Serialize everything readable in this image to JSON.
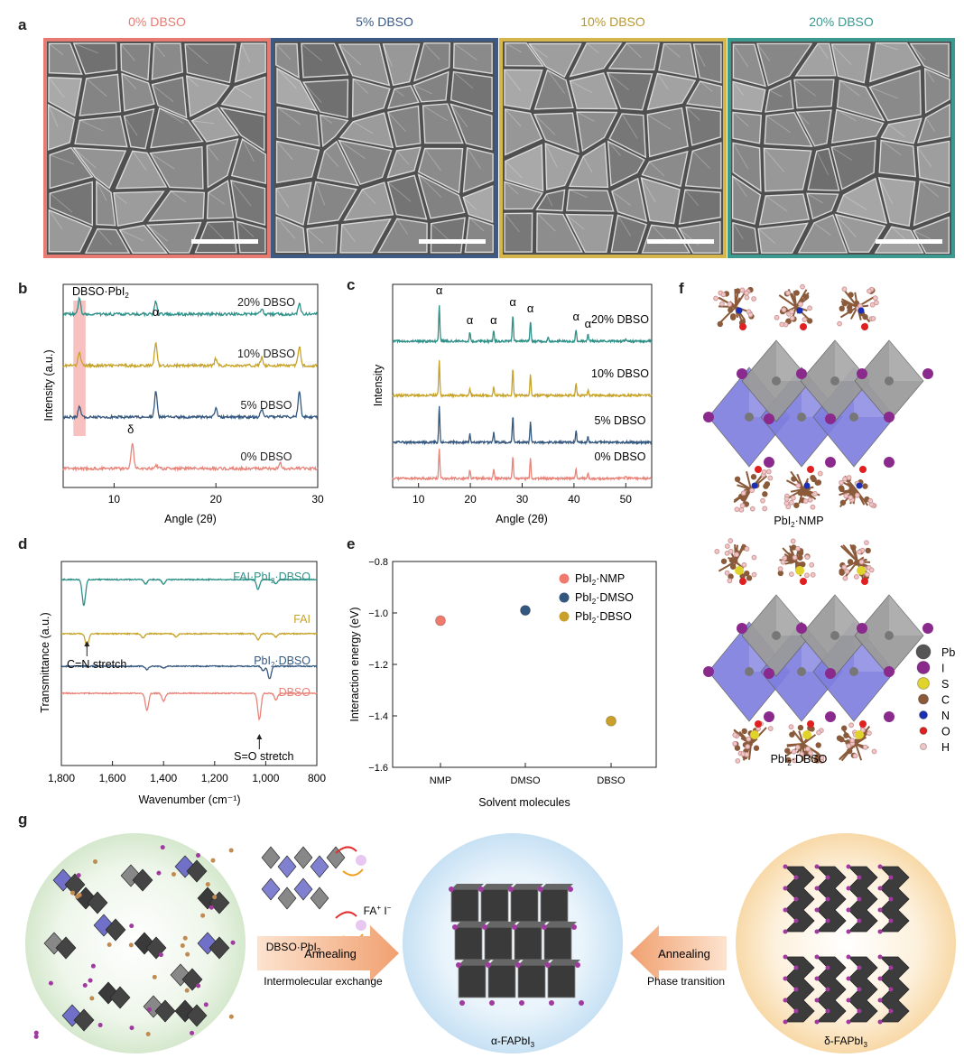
{
  "panels": {
    "a": "a",
    "b": "b",
    "c": "c",
    "d": "d",
    "e": "e",
    "f": "f",
    "g": "g"
  },
  "sem": [
    {
      "label": "0% DBSO",
      "color": "#e77b72"
    },
    {
      "label": "5% DBSO",
      "color": "#3d5a84"
    },
    {
      "label": "10% DBSO",
      "color": "#d4b64b"
    },
    {
      "label": "20% DBSO",
      "color": "#3a9a8f"
    }
  ],
  "colors": {
    "s0": "#e8847a",
    "s5": "#35587e",
    "s10": "#c6a32a",
    "s20": "#2e9088",
    "highlight": "#f4a6a4"
  },
  "chart_data": [
    {
      "type": "line",
      "id": "b",
      "xlabel": "Angle (2θ)",
      "ylabel": "Intensity (a.u.)",
      "xlim": [
        5,
        30
      ],
      "xticks": [
        10,
        20,
        30
      ],
      "highlight_label": "DBSO·PbI2",
      "highlight_range": [
        6.0,
        7.2
      ],
      "series": [
        {
          "name": "20% DBSO",
          "peaks": [
            [
              6.6,
              0.7
            ],
            [
              14.1,
              0.55
            ],
            [
              24.5,
              0.2
            ],
            [
              28.2,
              0.45
            ]
          ]
        },
        {
          "name": "10% DBSO",
          "peaks": [
            [
              6.6,
              0.6
            ],
            [
              14.1,
              1.0
            ],
            [
              20.0,
              0.3
            ],
            [
              24.5,
              0.35
            ],
            [
              28.2,
              0.85
            ]
          ]
        },
        {
          "name": "5% DBSO",
          "peaks": [
            [
              6.6,
              0.45
            ],
            [
              14.1,
              1.1
            ],
            [
              20.0,
              0.35
            ],
            [
              24.5,
              0.3
            ],
            [
              28.2,
              1.1
            ]
          ]
        },
        {
          "name": "0% DBSO",
          "peaks": [
            [
              11.8,
              1.1
            ],
            [
              14.1,
              0.15
            ],
            [
              26.3,
              0.25
            ]
          ]
        }
      ],
      "annotations": [
        {
          "text": "α",
          "x": 14.1
        },
        {
          "text": "δ",
          "x": 11.8
        }
      ]
    },
    {
      "type": "line",
      "id": "c",
      "xlabel": "Angle (2θ)",
      "ylabel": "Intensity",
      "xlim": [
        5,
        55
      ],
      "xticks": [
        10,
        20,
        30,
        40,
        50
      ],
      "series": [
        {
          "name": "20% DBSO",
          "peaks": [
            [
              14.0,
              1.3
            ],
            [
              19.9,
              0.35
            ],
            [
              24.5,
              0.4
            ],
            [
              28.2,
              0.95
            ],
            [
              31.6,
              0.75
            ],
            [
              35.0,
              0.12
            ],
            [
              40.4,
              0.45
            ],
            [
              42.7,
              0.25
            ],
            [
              50.0,
              0.1
            ]
          ]
        },
        {
          "name": "10% DBSO",
          "peaks": [
            [
              14.0,
              1.3
            ],
            [
              19.9,
              0.25
            ],
            [
              24.5,
              0.3
            ],
            [
              28.2,
              0.95
            ],
            [
              31.6,
              0.75
            ],
            [
              40.4,
              0.45
            ],
            [
              42.7,
              0.2
            ]
          ]
        },
        {
          "name": "5% DBSO",
          "peaks": [
            [
              14.0,
              1.3
            ],
            [
              19.9,
              0.3
            ],
            [
              24.5,
              0.35
            ],
            [
              28.2,
              0.95
            ],
            [
              31.6,
              0.75
            ],
            [
              40.4,
              0.45
            ],
            [
              42.7,
              0.2
            ]
          ]
        },
        {
          "name": "0% DBSO",
          "peaks": [
            [
              14.0,
              1.1
            ],
            [
              19.9,
              0.3
            ],
            [
              24.5,
              0.35
            ],
            [
              28.2,
              0.8
            ],
            [
              31.6,
              0.75
            ],
            [
              40.4,
              0.35
            ],
            [
              42.7,
              0.2
            ],
            [
              50.0,
              0.1
            ]
          ]
        }
      ],
      "annotations": [
        {
          "text": "α",
          "x": 14.0
        },
        {
          "text": "α",
          "x": 19.9
        },
        {
          "text": "α",
          "x": 24.5
        },
        {
          "text": "α",
          "x": 28.2
        },
        {
          "text": "α",
          "x": 31.6
        },
        {
          "text": "α",
          "x": 40.4
        },
        {
          "text": "α",
          "x": 42.7
        }
      ]
    },
    {
      "type": "line",
      "id": "d",
      "xlabel": "Wavenumber (cm⁻¹)",
      "ylabel": "Transmittance (a.u.)",
      "xlim": [
        1800,
        800
      ],
      "xticks": [
        1800,
        1600,
        1400,
        1200,
        1000,
        800
      ],
      "xtick_labels": [
        "1,800",
        "1,600",
        "1,400",
        "1,200",
        "1,000",
        "800"
      ],
      "series": [
        {
          "name": "FAI·PbI2·DBSO",
          "dips": [
            [
              1712,
              1.2
            ],
            [
              1470,
              0.2
            ],
            [
              1400,
              0.2
            ],
            [
              1030,
              0.45
            ],
            [
              960,
              0.2
            ]
          ]
        },
        {
          "name": "FAI",
          "dips": [
            [
              1700,
              0.6
            ],
            [
              1480,
              0.2
            ],
            [
              1350,
              0.15
            ],
            [
              1030,
              0.3
            ],
            [
              960,
              0.15
            ]
          ]
        },
        {
          "name": "PbI2·DBSO",
          "dips": [
            [
              1465,
              0.15
            ],
            [
              1400,
              0.1
            ],
            [
              1010,
              0.2
            ],
            [
              985,
              0.6
            ]
          ]
        },
        {
          "name": "DBSO",
          "dips": [
            [
              1465,
              0.8
            ],
            [
              1400,
              0.35
            ],
            [
              1025,
              1.2
            ],
            [
              960,
              0.3
            ]
          ]
        }
      ],
      "annotations": [
        {
          "text": "C=N stretch",
          "x": 1700
        },
        {
          "text": "S=O stretch",
          "x": 1025
        }
      ]
    },
    {
      "type": "scatter",
      "id": "e",
      "xlabel": "Solvent molecules",
      "ylabel": "Interaction energy (eV)",
      "categories": [
        "NMP",
        "DMSO",
        "DBSO"
      ],
      "ylim": [
        -1.6,
        -0.8
      ],
      "yticks": [
        -0.8,
        -1.0,
        -1.2,
        -1.4,
        -1.6
      ],
      "ytick_labels": [
        "−0.8",
        "−1.0",
        "−1.2",
        "−1.4",
        "−1.6"
      ],
      "series": [
        {
          "name": "PbI2·NMP",
          "x": "NMP",
          "y": -1.03,
          "color": "#f07a6e"
        },
        {
          "name": "PbI2·DMSO",
          "x": "DMSO",
          "y": -0.99,
          "color": "#34577f"
        },
        {
          "name": "PbI2·DBSO",
          "x": "DBSO",
          "y": -1.42,
          "color": "#c9a12a"
        }
      ],
      "legend": "top-right"
    }
  ],
  "b": {
    "highlight_label_main": "DBSO·PbI",
    "highlight_label_sub": "2"
  },
  "d": {
    "labels": [
      {
        "main": "FAI·PbI",
        "sub": "2",
        "rest": "·DBSO"
      },
      {
        "main": "FAI",
        "sub": "",
        "rest": ""
      },
      {
        "main": "PbI",
        "sub": "2",
        "rest": "·DBSO"
      },
      {
        "main": "DBSO",
        "sub": "",
        "rest": ""
      }
    ]
  },
  "e": {
    "legend": [
      {
        "main": "PbI",
        "sub": "2",
        "rest": "·NMP"
      },
      {
        "main": "PbI",
        "sub": "2",
        "rest": "·DMSO"
      },
      {
        "main": "PbI",
        "sub": "2",
        "rest": "·DBSO"
      }
    ]
  },
  "f": {
    "caption_top": {
      "main": "PbI",
      "sub": "2",
      "rest": "·NMP"
    },
    "caption_bottom": {
      "main": "PbI",
      "sub": "2",
      "rest": "·DBSO"
    },
    "legend": [
      {
        "label": "Pb",
        "color": "#555555"
      },
      {
        "label": "I",
        "color": "#8a2a8c"
      },
      {
        "label": "S",
        "color": "#e0d32c"
      },
      {
        "label": "C",
        "color": "#8a5a3a"
      },
      {
        "label": "N",
        "color": "#1a2fb5"
      },
      {
        "label": "O",
        "color": "#e02020"
      },
      {
        "label": "H",
        "color": "#f2c6c6"
      }
    ]
  },
  "g": {
    "fa_label": {
      "main": "FA",
      "sup": "+",
      "rest": " I",
      "sup2": "−"
    },
    "dbso_label": {
      "main": "DBSO·PbI",
      "sub": "2"
    },
    "arrow_left": "Annealing",
    "arrow_left_caption": "Intermolecular exchange",
    "arrow_right": "Annealing",
    "arrow_right_caption": "Phase transition",
    "alpha_caption": {
      "main": "α-FAPbI",
      "sub": "3"
    },
    "delta_caption": {
      "main": "δ-FAPbI",
      "sub": "3"
    }
  }
}
